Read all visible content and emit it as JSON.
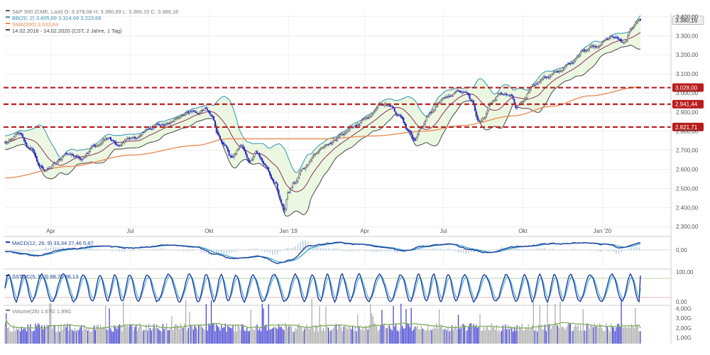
{
  "chart_data": [
    {
      "panel": "price",
      "type": "candlestick",
      "legend": [
        {
          "text": "S&P 500 (CME, Last)  O: 3.378,08  H: 3.380,69  L: 3.366,15  C: 3.380,16",
          "color": "#555555"
        },
        {
          "text": "BB(20, 2)  3.405,69  3.314,69  3.223,68",
          "color": "#3b8fb0"
        },
        {
          "text": "SMA(200)  3.032,63",
          "color": "#e8864a"
        },
        {
          "text": "14.02.2018 - 14.02.2020   (CST, 2 Jahre, 1 Tag)",
          "color": "#444444"
        }
      ],
      "ylim": [
        2260,
        3420
      ],
      "y_ticks": [
        2300,
        2400,
        2500,
        2600,
        2700,
        2800,
        2900,
        3000,
        3100,
        3200,
        3300,
        3400
      ],
      "y_tick_labels": [
        "2.300,00",
        "2.400,00",
        "2.500,00",
        "2.600,00",
        "2.700,00",
        "2.800,00",
        "2.900,00",
        "3.000,00",
        "3.100,00",
        "3.200,00",
        "3.300,00",
        "3.400,00"
      ],
      "x_labels": [
        {
          "label": "Apr",
          "x": 0.072
        },
        {
          "label": "Jul",
          "x": 0.197
        },
        {
          "label": "Okt",
          "x": 0.321
        },
        {
          "label": "Jan '19",
          "x": 0.446
        },
        {
          "label": "Apr",
          "x": 0.566
        },
        {
          "label": "Jul",
          "x": 0.69
        },
        {
          "label": "Okt",
          "x": 0.815
        },
        {
          "label": "Jan '20",
          "x": 0.94
        }
      ],
      "last_value": {
        "value": 3380.16,
        "label": "3.380,16"
      },
      "horizontal_lines": [
        {
          "value": 3028,
          "label": "3.028,00",
          "color": "#b81d1d"
        },
        {
          "value": 2941.44,
          "label": "2.941,44",
          "color": "#b81d1d"
        },
        {
          "value": 2821.71,
          "label": "2.821,71",
          "color": "#b81d1d"
        }
      ],
      "close_anchors": [
        [
          0,
          2735
        ],
        [
          0.02,
          2780
        ],
        [
          0.04,
          2700
        ],
        [
          0.055,
          2620
        ],
        [
          0.065,
          2600
        ],
        [
          0.08,
          2640
        ],
        [
          0.1,
          2680
        ],
        [
          0.12,
          2660
        ],
        [
          0.14,
          2720
        ],
        [
          0.16,
          2760
        ],
        [
          0.18,
          2720
        ],
        [
          0.2,
          2760
        ],
        [
          0.22,
          2800
        ],
        [
          0.24,
          2830
        ],
        [
          0.27,
          2860
        ],
        [
          0.3,
          2900
        ],
        [
          0.315,
          2920
        ],
        [
          0.325,
          2880
        ],
        [
          0.335,
          2780
        ],
        [
          0.345,
          2720
        ],
        [
          0.355,
          2660
        ],
        [
          0.37,
          2720
        ],
        [
          0.385,
          2640
        ],
        [
          0.395,
          2700
        ],
        [
          0.41,
          2620
        ],
        [
          0.425,
          2540
        ],
        [
          0.435,
          2420
        ],
        [
          0.44,
          2380
        ],
        [
          0.445,
          2480
        ],
        [
          0.455,
          2540
        ],
        [
          0.47,
          2610
        ],
        [
          0.49,
          2680
        ],
        [
          0.51,
          2740
        ],
        [
          0.53,
          2780
        ],
        [
          0.55,
          2820
        ],
        [
          0.57,
          2870
        ],
        [
          0.59,
          2930
        ],
        [
          0.605,
          2930
        ],
        [
          0.62,
          2880
        ],
        [
          0.635,
          2800
        ],
        [
          0.645,
          2760
        ],
        [
          0.655,
          2830
        ],
        [
          0.67,
          2900
        ],
        [
          0.69,
          2960
        ],
        [
          0.71,
          3000
        ],
        [
          0.725,
          3010
        ],
        [
          0.735,
          2960
        ],
        [
          0.745,
          2860
        ],
        [
          0.755,
          2880
        ],
        [
          0.765,
          2950
        ],
        [
          0.78,
          3000
        ],
        [
          0.795,
          2990
        ],
        [
          0.805,
          2920
        ],
        [
          0.815,
          2960
        ],
        [
          0.83,
          3040
        ],
        [
          0.85,
          3080
        ],
        [
          0.87,
          3110
        ],
        [
          0.89,
          3150
        ],
        [
          0.91,
          3210
        ],
        [
          0.93,
          3240
        ],
        [
          0.945,
          3280
        ],
        [
          0.955,
          3300
        ],
        [
          0.965,
          3280
        ],
        [
          0.975,
          3250
        ],
        [
          0.985,
          3330
        ],
        [
          1,
          3380
        ]
      ],
      "sma_anchors": [
        [
          0,
          2555
        ],
        [
          0.1,
          2615
        ],
        [
          0.2,
          2675
        ],
        [
          0.3,
          2725
        ],
        [
          0.35,
          2760
        ],
        [
          0.42,
          2760
        ],
        [
          0.5,
          2760
        ],
        [
          0.58,
          2775
        ],
        [
          0.66,
          2800
        ],
        [
          0.72,
          2830
        ],
        [
          0.8,
          2880
        ],
        [
          0.86,
          2930
        ],
        [
          0.92,
          2985
        ],
        [
          1,
          3032
        ]
      ]
    },
    {
      "panel": "macd",
      "type": "line",
      "legend": [
        {
          "text": "MACD(12, 26, 9)  33,34  27,46  5,87",
          "color": "#1f3f9f"
        }
      ],
      "y_tick_labels": [
        "0,00"
      ],
      "ylim": [
        -90,
        60
      ],
      "macd_anchors": [
        [
          0,
          -10
        ],
        [
          0.05,
          -30
        ],
        [
          0.1,
          5
        ],
        [
          0.15,
          20
        ],
        [
          0.2,
          10
        ],
        [
          0.25,
          25
        ],
        [
          0.3,
          20
        ],
        [
          0.33,
          -20
        ],
        [
          0.36,
          -45
        ],
        [
          0.4,
          -35
        ],
        [
          0.43,
          -70
        ],
        [
          0.45,
          -55
        ],
        [
          0.48,
          20
        ],
        [
          0.52,
          40
        ],
        [
          0.56,
          30
        ],
        [
          0.6,
          10
        ],
        [
          0.63,
          -5
        ],
        [
          0.66,
          20
        ],
        [
          0.7,
          30
        ],
        [
          0.73,
          5
        ],
        [
          0.76,
          -15
        ],
        [
          0.8,
          15
        ],
        [
          0.85,
          30
        ],
        [
          0.9,
          35
        ],
        [
          0.95,
          30
        ],
        [
          0.97,
          10
        ],
        [
          1,
          33
        ]
      ]
    },
    {
      "panel": "stoch",
      "type": "line",
      "legend": [
        {
          "text": "SSTOC(5, 5, 3)  88,76  88,13",
          "color": "#1f3f9f"
        }
      ],
      "y_tick_labels": [
        "100,00",
        "0,00"
      ],
      "ylim": [
        0,
        100
      ],
      "overbought": 80,
      "oversold": 20,
      "last_value": 88.76,
      "cycles": 36
    },
    {
      "panel": "volume",
      "type": "bar",
      "legend": [
        {
          "text": "Volume(28)  1,67G  1,99G",
          "color": "#777777"
        }
      ],
      "y_ticks": [
        1,
        2,
        3,
        4
      ],
      "y_tick_labels": [
        "1,00G",
        "2,00G",
        "3,00G",
        "4,00G"
      ],
      "ylim": [
        0.4,
        4.1
      ],
      "avg_value": 1.99,
      "last_value": 1.67
    }
  ]
}
